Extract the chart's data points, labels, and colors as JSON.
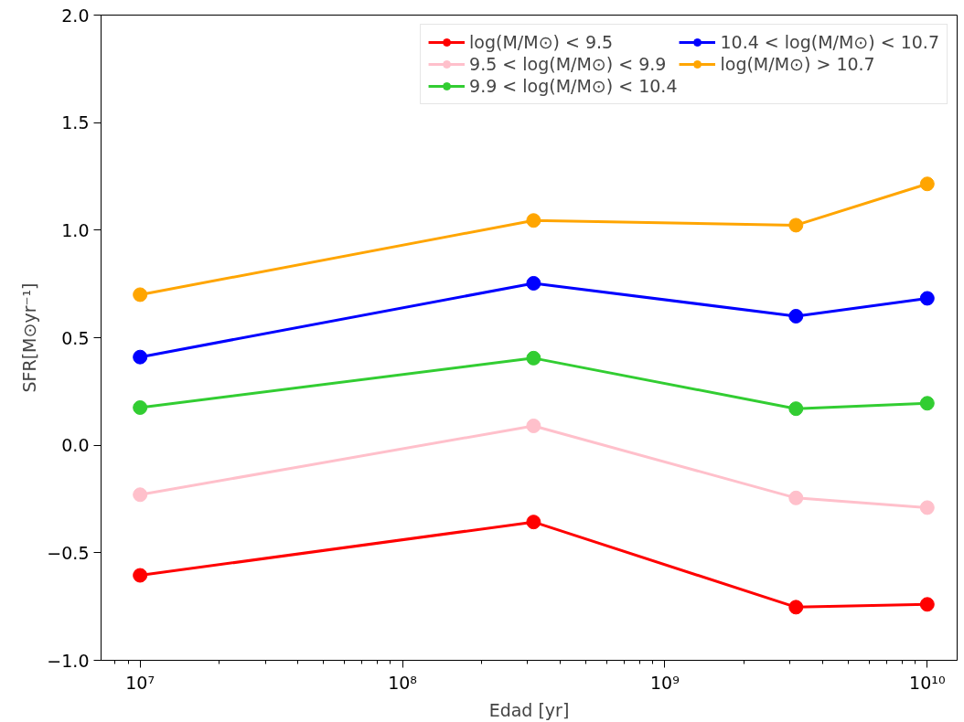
{
  "chart_data": {
    "type": "line",
    "xlabel": "Edad [yr]",
    "ylabel": "SFR[M⊙yr⁻¹]",
    "x": [
      10000000,
      316000000,
      3160000000,
      10000000000
    ],
    "series": [
      {
        "name": "log(M/M⊙) < 9.5",
        "color": "#ff0000",
        "values": [
          -0.605,
          -0.357,
          -0.753,
          -0.74
        ]
      },
      {
        "name": "9.5 < log(M/M⊙) < 9.9",
        "color": "#ffc0cb",
        "values": [
          -0.23,
          0.09,
          -0.245,
          -0.29
        ]
      },
      {
        "name": "9.9 < log(M/M⊙) < 10.4",
        "color": "#32cd32",
        "values": [
          0.175,
          0.405,
          0.17,
          0.195
        ]
      },
      {
        "name": "10.4 < log(M/M⊙) < 10.7",
        "color": "#0000ff",
        "values": [
          0.41,
          0.753,
          0.6,
          0.683
        ]
      },
      {
        "name": "log(M/M⊙) > 10.7",
        "color": "#ffa500",
        "values": [
          0.7,
          1.045,
          1.023,
          1.215
        ]
      }
    ],
    "log": "x",
    "xlim": [
      7100000,
      13000000000
    ],
    "xticks": [
      {
        "value": 10000000,
        "label": "10⁷"
      },
      {
        "value": 100000000,
        "label": "10⁸"
      },
      {
        "value": 1000000000,
        "label": "10⁹"
      },
      {
        "value": 10000000000,
        "label": "10¹⁰"
      }
    ],
    "ylim": [
      -1.0,
      2.0
    ],
    "yticks": [
      {
        "value": -1.0,
        "label": "−1.0"
      },
      {
        "value": -0.5,
        "label": "−0.5"
      },
      {
        "value": 0.0,
        "label": "0.0"
      },
      {
        "value": 0.5,
        "label": "0.5"
      },
      {
        "value": 1.0,
        "label": "1.0"
      },
      {
        "value": 1.5,
        "label": "1.5"
      },
      {
        "value": 2.0,
        "label": "2.0"
      }
    ],
    "grid": false,
    "legend": "top right",
    "marker": "circle",
    "line_style": "solid"
  }
}
